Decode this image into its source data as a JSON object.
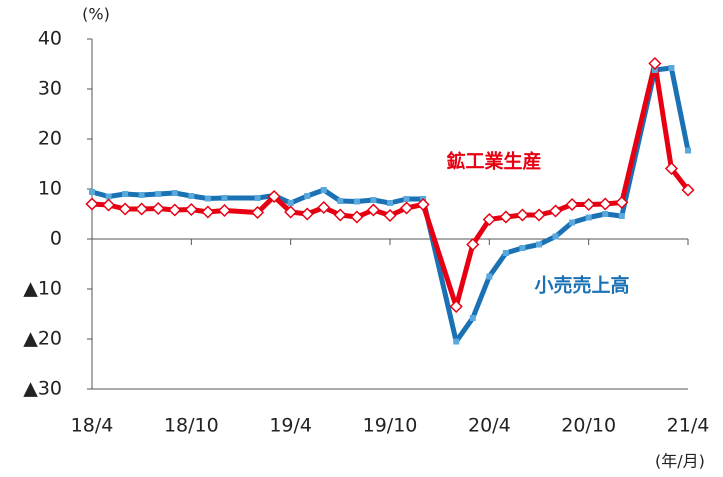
{
  "chart_data": {
    "type": "line",
    "y_unit": "(%)",
    "x_unit": "(年/月)",
    "categories": [
      "18/4",
      null,
      null,
      null,
      null,
      null,
      "18/10",
      null,
      null,
      null,
      null,
      null,
      "19/4",
      null,
      null,
      null,
      null,
      null,
      "19/10",
      null,
      null,
      null,
      null,
      null,
      "20/4",
      null,
      null,
      null,
      null,
      null,
      "20/10",
      null,
      null,
      null,
      null,
      null,
      "21/4"
    ],
    "series": [
      {
        "name": "鉱工業生産",
        "color": "#e60012",
        "values": [
          7.0,
          6.8,
          6.0,
          6.0,
          6.1,
          5.8,
          5.9,
          5.4,
          5.7,
          null,
          5.3,
          8.5,
          5.4,
          5.0,
          6.3,
          4.8,
          4.4,
          5.8,
          4.7,
          6.2,
          6.9,
          null,
          -13.5,
          -1.1,
          3.9,
          4.4,
          4.8,
          4.8,
          5.6,
          6.9,
          6.9,
          7.0,
          7.3,
          null,
          35.1,
          14.1,
          9.8
        ]
      },
      {
        "name": "小売売上高",
        "color": "#1a72b5",
        "values": [
          9.4,
          8.5,
          9.0,
          8.8,
          9.0,
          9.2,
          8.6,
          8.1,
          8.2,
          null,
          8.2,
          8.7,
          7.2,
          8.6,
          9.8,
          7.6,
          7.5,
          7.8,
          7.2,
          8.0,
          8.0,
          null,
          -20.5,
          -15.8,
          -7.5,
          -2.8,
          -1.8,
          -1.1,
          0.5,
          3.3,
          4.3,
          5.0,
          4.6,
          null,
          33.8,
          34.2,
          17.7
        ]
      }
    ],
    "ylim": [
      -30,
      40
    ],
    "yticks": [
      {
        "value": -30,
        "label": "▲30"
      },
      {
        "value": -20,
        "label": "▲20"
      },
      {
        "value": -10,
        "label": "▲10"
      },
      0,
      10,
      20,
      30,
      40
    ]
  }
}
